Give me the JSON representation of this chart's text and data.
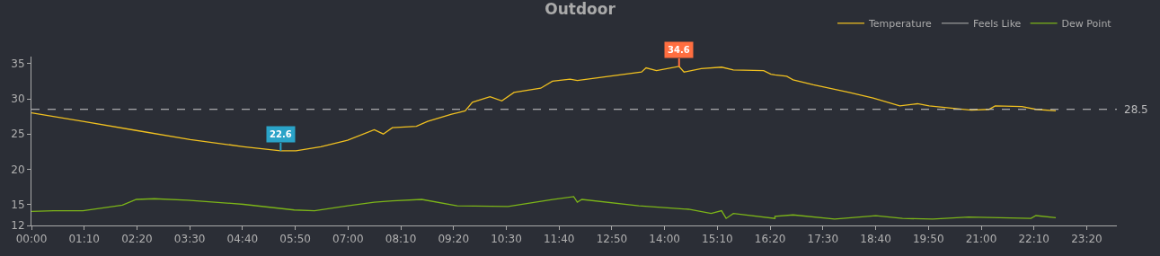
{
  "chart_data": {
    "type": "line",
    "title": "Outdoor",
    "legend": "top right",
    "grid": false,
    "line_style": "solid",
    "xlim": [
      0,
      24
    ],
    "ylim": [
      12,
      36
    ],
    "xticks": [
      {
        "value": 0,
        "label": "00:00"
      },
      {
        "value": 1.1667,
        "label": "01:10"
      },
      {
        "value": 2.3333,
        "label": "02:20"
      },
      {
        "value": 3.5,
        "label": "03:30"
      },
      {
        "value": 4.6667,
        "label": "04:40"
      },
      {
        "value": 5.8333,
        "label": "05:50"
      },
      {
        "value": 7,
        "label": "07:00"
      },
      {
        "value": 8.1667,
        "label": "08:10"
      },
      {
        "value": 9.3333,
        "label": "09:20"
      },
      {
        "value": 10.5,
        "label": "10:30"
      },
      {
        "value": 11.6667,
        "label": "11:40"
      },
      {
        "value": 12.8333,
        "label": "12:50"
      },
      {
        "value": 14,
        "label": "14:00"
      },
      {
        "value": 15.1667,
        "label": "15:10"
      },
      {
        "value": 16.3333,
        "label": "16:20"
      },
      {
        "value": 17.5,
        "label": "17:30"
      },
      {
        "value": 18.6667,
        "label": "18:40"
      },
      {
        "value": 19.8333,
        "label": "19:50"
      },
      {
        "value": 21,
        "label": "21:00"
      },
      {
        "value": 22.1667,
        "label": "22:10"
      },
      {
        "value": 23.3333,
        "label": "23:20"
      }
    ],
    "yticks": [
      12,
      15,
      20,
      25,
      30,
      35
    ],
    "series": [
      {
        "name": "Temperature",
        "color": "#f0c020",
        "x": [
          0,
          1.14,
          2.32,
          3.51,
          4.69,
          5.51,
          5.85,
          6.4,
          6.99,
          7.58,
          7.78,
          7.98,
          8.51,
          8.76,
          9.29,
          9.59,
          9.75,
          10.14,
          10.4,
          10.67,
          11.26,
          11.52,
          11.91,
          12.07,
          13.49,
          13.59,
          13.82,
          14.32,
          14.43,
          14.81,
          15.26,
          15.52,
          16.19,
          16.35,
          16.44,
          16.7,
          16.84,
          17.29,
          18.08,
          18.61,
          19.2,
          19.59,
          19.85,
          20.78,
          21.17,
          21.31,
          21.9,
          22.21,
          22.65
        ],
        "values": [
          28.0,
          26.8,
          25.5,
          24.2,
          23.2,
          22.6,
          22.6,
          23.2,
          24.1,
          25.6,
          25.0,
          25.9,
          26.1,
          26.8,
          27.8,
          28.3,
          29.5,
          30.3,
          29.7,
          30.9,
          31.5,
          32.5,
          32.8,
          32.6,
          33.8,
          34.4,
          34.0,
          34.6,
          33.8,
          34.3,
          34.5,
          34.1,
          34.0,
          33.5,
          33.4,
          33.2,
          32.7,
          32.0,
          30.9,
          30.1,
          29.0,
          29.3,
          29.0,
          28.4,
          28.5,
          29.0,
          28.9,
          28.5,
          28.3
        ]
      },
      {
        "name": "Feels Like",
        "color": "#9a9a9a"
      },
      {
        "name": "Dew Point",
        "color": "#7cb518",
        "x": [
          0,
          0.49,
          1.14,
          2.01,
          2.32,
          2.72,
          3.45,
          4.69,
          5.81,
          6.26,
          6.99,
          7.58,
          7.98,
          8.63,
          9.41,
          10.54,
          11.52,
          11.99,
          12.07,
          12.17,
          13.43,
          14.53,
          15.03,
          15.26,
          15.36,
          15.52,
          16.44,
          16.44,
          16.84,
          17.76,
          18.67,
          19.26,
          19.93,
          20.72,
          22.1,
          22.21,
          22.65
        ],
        "values": [
          14.0,
          14.1,
          14.1,
          14.9,
          15.7,
          15.8,
          15.6,
          15.0,
          14.2,
          14.1,
          14.8,
          15.3,
          15.5,
          15.7,
          14.8,
          14.7,
          15.7,
          16.1,
          15.3,
          15.7,
          14.8,
          14.3,
          13.7,
          14.1,
          13.0,
          13.7,
          13.0,
          13.3,
          13.5,
          12.9,
          13.4,
          13.0,
          12.9,
          13.2,
          13.0,
          13.4,
          13.1
        ]
      }
    ],
    "ref_lines": [
      {
        "axis": "y",
        "value": 28.5,
        "label": "28.5",
        "color": "#cccccc",
        "line_style": "dashed"
      }
    ],
    "annotations": [
      {
        "text": "22.6",
        "x": 5.51,
        "y": 22.6
      },
      {
        "text": "34.6",
        "x": 14.32,
        "y": 34.6
      }
    ]
  }
}
